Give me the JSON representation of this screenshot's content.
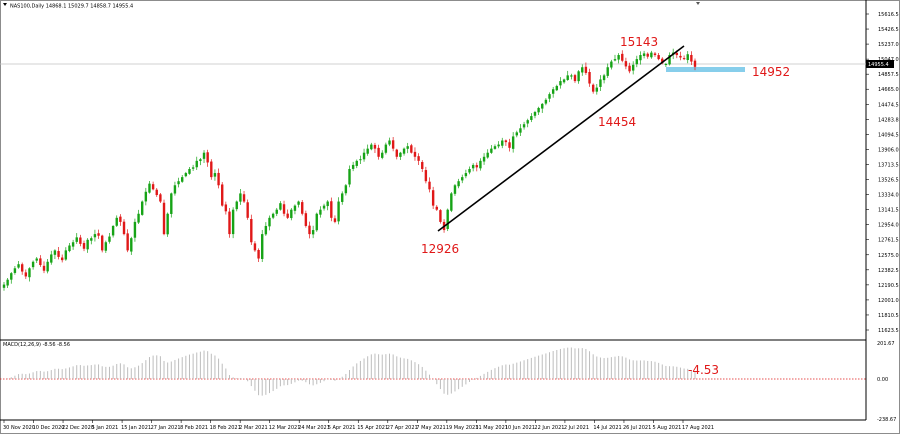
{
  "chart": {
    "symbol_title": "NAS100,Daily  14868.1 15029.7 14858.7 14955.4",
    "current_price_label": "14955.4",
    "price_axis_labels": [
      "15616.5",
      "15426.5",
      "15237.0",
      "15047.0",
      "14857.5",
      "14665.0",
      "14474.5",
      "14283.8",
      "14094.5",
      "13906.0",
      "13713.5",
      "13526.5",
      "13334.0",
      "13141.5",
      "12954.0",
      "12761.5",
      "12575.0",
      "12382.5",
      "12190.5",
      "12001.0",
      "11810.5",
      "11623.5"
    ],
    "date_axis_labels": [
      "30 Nov 2020",
      "10 Dec 2020",
      "22 Dec 2020",
      "5 Jan 2021",
      "15 Jan 2021",
      "27 Jan 2021",
      "8 Feb 2021",
      "18 Feb 2021",
      "2 Mar 2021",
      "12 Mar 2021",
      "24 Mar 2021",
      "5 Apr 2021",
      "15 Apr 2021",
      "27 Apr 2021",
      "7 May 2021",
      "19 May 2021",
      "31 May 2021",
      "10 Jun 2021",
      "22 Jun 2021",
      "2 Jul 2021",
      "14 Jul 2021",
      "26 Jul 2021",
      "5 Aug 2021",
      "17 Aug 2021"
    ],
    "annotations": {
      "high_label": "15143",
      "low_label": "12926",
      "mid_low_label": "14454",
      "support_label": "14952"
    },
    "colors": {
      "bull": "#16a316",
      "bear": "#e01818",
      "support_zone": "#87ceeb",
      "annotation": "#e01818",
      "trendline": "#000000"
    }
  },
  "macd": {
    "title": "MACD(12,26,9) -8.56 -8.56",
    "value_label": "-4.53",
    "axis_labels": [
      "201.67",
      "0.00",
      "-238.67"
    ]
  },
  "chart_data": {
    "type": "candlestick",
    "price_range": [
      11623.5,
      15616.5
    ],
    "first_date": "30 Nov 2020",
    "last_date": "17 Aug 2021",
    "closes": [
      12280,
      12340,
      12420,
      12480,
      12530,
      12440,
      12380,
      12480,
      12560,
      12600,
      12520,
      12450,
      12560,
      12650,
      12700,
      12620,
      12580,
      12700,
      12760,
      12800,
      12860,
      12780,
      12720,
      12830,
      12850,
      12900,
      12880,
      12700,
      12800,
      12870,
      13000,
      13100,
      13050,
      12900,
      12700,
      12850,
      13050,
      13150,
      13300,
      13420,
      13520,
      13450,
      13380,
      13300,
      12900,
      13150,
      13400,
      13500,
      13550,
      13600,
      13650,
      13700,
      13720,
      13800,
      13820,
      13900,
      13780,
      13600,
      13650,
      13500,
      13250,
      13180,
      12900,
      13200,
      13300,
      13400,
      13300,
      13100,
      12800,
      12700,
      12600,
      12900,
      13000,
      13100,
      13150,
      13200,
      13280,
      13150,
      13100,
      13200,
      13250,
      13300,
      13150,
      13000,
      12900,
      12950,
      13150,
      13200,
      13250,
      13300,
      13100,
      13050,
      13300,
      13400,
      13500,
      13700,
      13750,
      13800,
      13820,
      13900,
      13950,
      14000,
      13950,
      13850,
      13900,
      14000,
      14050,
      13950,
      13850,
      13900,
      13950,
      13980,
      13900,
      13850,
      13800,
      13700,
      13550,
      13450,
      13250,
      13200,
      13050,
      12950,
      13200,
      13400,
      13500,
      13550,
      13600,
      13650,
      13700,
      13750,
      13720,
      13800,
      13850,
      13900,
      13950,
      13980,
      14000,
      14050,
      14030,
      13960,
      14100,
      14150,
      14200,
      14250,
      14300,
      14350,
      14400,
      14450,
      14500,
      14550,
      14620,
      14680,
      14720,
      14780,
      14800,
      14850,
      14850,
      14780,
      14900,
      14950,
      14880,
      14750,
      14650,
      14700,
      14800,
      14850,
      14950,
      15020,
      15050,
      15100,
      15030,
      14960,
      14900,
      14980,
      15050,
      15100,
      15120,
      15080,
      15130,
      15100,
      15050,
      15000,
      14990,
      15100,
      15130,
      15100,
      15070,
      15050,
      15110,
      15020,
      14955
    ],
    "current_price": 14955.4,
    "levels": {
      "high": 15143,
      "support": 14952,
      "mid_low": 14454,
      "low": 12926
    },
    "macd": {
      "range": [
        -238.67,
        201.67
      ],
      "value": -4.53,
      "signal_line": 0
    }
  }
}
